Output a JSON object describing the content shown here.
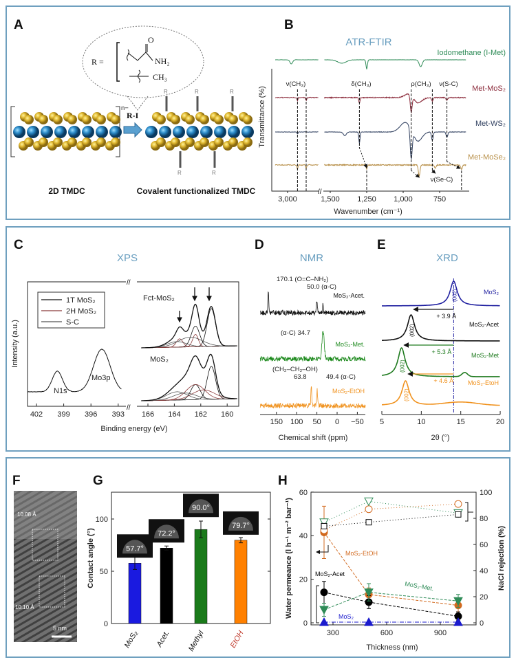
{
  "panel_a": {
    "label": "A",
    "r_equals": "R =",
    "oxygen": "O",
    "amide_group": "NH₂",
    "methyl_group": "CH₃",
    "reagent": "R-I",
    "charge": "n−",
    "r_group": "R",
    "left_caption": "2D TMDC",
    "right_caption": "Covalent functionalized TMDC"
  },
  "panel_f": {
    "label": "F",
    "spacing_top": "10.08 Å",
    "spacing_bottom": "10.10 Å",
    "scale_bar": "5 nm"
  },
  "chart_data": [
    {
      "panel": "B",
      "type": "line",
      "title": "ATR-FTIR",
      "xlabel": "Wavenumber (cm⁻¹)",
      "ylabel": "Transmittance (%)",
      "xticks": [
        3000,
        1500,
        1250,
        1000,
        750
      ],
      "xtick_labels": [
        "3,000",
        "1,500",
        "1,250",
        "1,000",
        "750"
      ],
      "axis_break": [
        2750,
        1540
      ],
      "annotations": [
        "ν(CH₃)",
        "δ(CH₃)",
        "ρ(CH₃)",
        "ν(S-C)",
        "ν(Se-C)"
      ],
      "series": [
        {
          "name": "Iodomethane (I-Met)",
          "color": "#2e8b57",
          "bands": [
            [
              2970,
              6,
              15
            ],
            [
              1420,
              5,
              40
            ],
            [
              1250,
              13,
              7
            ],
            [
              880,
              10,
              15
            ]
          ]
        },
        {
          "name": "Met-MoS₂",
          "color": "#8b2a3a",
          "bands": [
            [
              2920,
              4,
              6
            ],
            [
              2850,
              4,
              6
            ],
            [
              1300,
              8,
              6
            ],
            [
              960,
              -6,
              40
            ],
            [
              945,
              24,
              9
            ],
            [
              900,
              8,
              40
            ],
            [
              800,
              5,
              8
            ],
            [
              700,
              4,
              8
            ]
          ]
        },
        {
          "name": "Met-WS₂",
          "color": "#2f3f5f",
          "bands": [
            [
              2920,
              3,
              6
            ],
            [
              1400,
              5,
              15
            ],
            [
              1300,
              16,
              6
            ],
            [
              985,
              -14,
              50
            ],
            [
              945,
              42,
              10
            ],
            [
              900,
              14,
              40
            ],
            [
              800,
              12,
              8
            ],
            [
              700,
              8,
              8
            ]
          ]
        },
        {
          "name": "Met-MoSe₂",
          "color": "#b8904a",
          "bands": [
            [
              2920,
              6,
              6
            ],
            [
              2850,
              5,
              6
            ],
            [
              1250,
              6,
              5
            ],
            [
              890,
              16,
              8
            ],
            [
              780,
              5,
              8
            ],
            [
              600,
              6,
              8
            ]
          ]
        }
      ]
    },
    {
      "panel": "C",
      "type": "line",
      "title": "XPS",
      "xlabel": "Binding energy (eV)",
      "ylabel": "Intensity (a.u.)",
      "xtick_labels": [
        "402",
        "399",
        "396",
        "393",
        "166",
        "164",
        "162",
        "160"
      ],
      "xticks": [
        402,
        399,
        396,
        393,
        166,
        164,
        162,
        160
      ],
      "legend": [
        "1T MoS₂",
        "2H MoS₂",
        "S-C"
      ],
      "legend_placement": "top-left",
      "spectrum_labels": [
        "Fct-MoS₂",
        "MoS₂",
        "N1s",
        "Mo3p"
      ],
      "n1s_mo3p": [
        [
          399.7,
          30,
          0.8
        ],
        [
          394.8,
          62,
          1.3
        ]
      ],
      "fct_components": [
        {
          "type": "1T MoS₂",
          "peaks": [
            [
              161.2,
              55,
              0.45
            ],
            [
              162.4,
              30,
              0.45
            ]
          ]
        },
        {
          "type": "2H MoS₂",
          "peaks": [
            [
              162.4,
              18,
              0.3
            ],
            [
              163.6,
              12,
              0.35
            ]
          ]
        },
        {
          "type": "S-C",
          "peaks": [
            [
              162.8,
              14,
              1.3
            ],
            [
              163.8,
              8,
              1.0
            ]
          ]
        }
      ],
      "mos2_components": [
        {
          "type": "1T MoS₂",
          "peaks": [
            [
              161.2,
              48,
              0.45
            ],
            [
              162.4,
              22,
              0.5
            ]
          ]
        },
        {
          "type": "2H MoS₂",
          "peaks": [
            [
              162.4,
              22,
              1.0
            ],
            [
              161.8,
              14,
              1.2
            ]
          ]
        },
        {
          "type": "S-C",
          "peaks": [
            [
              163.8,
              12,
              1.1
            ],
            [
              163.2,
              10,
              1.2
            ]
          ]
        }
      ]
    },
    {
      "panel": "D",
      "type": "line",
      "title": "NMR",
      "xlabel": "Chemical shift (ppm)",
      "xticks": [
        150,
        100,
        50,
        0,
        -50
      ],
      "xtick_labels": [
        "150",
        "100",
        "50",
        "0",
        "−50"
      ],
      "annotations": [
        "170.1 (O=C–NH₂)",
        "50.0  (α-C)",
        "(α-C) 34.7",
        "(CH₂–CH₂–OH)",
        "63.8",
        "49.4 (α-C)"
      ],
      "series": [
        {
          "name": "MoS₂-Acet.",
          "color": "#111111",
          "peaks": [
            [
              170.1,
              30,
              1.5
            ],
            [
              50.0,
              16,
              2
            ],
            [
              35,
              18,
              0.8
            ]
          ]
        },
        {
          "name": "MoS₂-Met.",
          "color": "#1e8a1e",
          "peaks": [
            [
              34.7,
              40,
              4
            ]
          ]
        },
        {
          "name": "MoS₂-EtOH",
          "color": "#f0921e",
          "peaks": [
            [
              63.8,
              30,
              1.5
            ],
            [
              49.4,
              22,
              1.8
            ]
          ]
        }
      ]
    },
    {
      "panel": "E",
      "type": "line",
      "title": "XRD",
      "xlabel": "2θ (°)",
      "xticks": [
        5,
        10,
        15,
        20
      ],
      "xtick_labels": [
        "5",
        "10",
        "15",
        "20"
      ],
      "reference_2theta": 14.1,
      "peak_label": "(002)",
      "series": [
        {
          "name": "MoS₂",
          "color": "#2020a0",
          "peak": 14.1,
          "shift_label": ""
        },
        {
          "name": "MoS₂-Acet",
          "color": "#111111",
          "peak": 8.7,
          "shift_label": "+ 3.9 Å"
        },
        {
          "name": "MoS₂-Met",
          "color": "#1e7a1e",
          "peak": 7.5,
          "shift_label": "+ 5.3 Å"
        },
        {
          "name": "MoS₂-EtoH",
          "color": "#f0921e",
          "peak": 8.0,
          "shift_label": "+ 4.6 Å"
        }
      ]
    },
    {
      "panel": "G",
      "type": "bar",
      "ylabel": "Contact angle (°)",
      "ylim": [
        0,
        125
      ],
      "yticks": [
        0,
        50,
        100
      ],
      "categories": [
        "MoS₂",
        "Acet.",
        "Methyl",
        "EtOH"
      ],
      "values": [
        57.7,
        72.2,
        90.0,
        79.7
      ],
      "errors": [
        6,
        2,
        8,
        2.5
      ],
      "value_labels": [
        "57.7°",
        "72.2°",
        "90.0°",
        "79.7°"
      ],
      "colors": [
        "#1a1ae0",
        "#000000",
        "#1a7a1a",
        "#ff8000"
      ],
      "category_colors": [
        "#111111",
        "#111111",
        "#111111",
        "#c0392b"
      ]
    },
    {
      "panel": "H",
      "type": "scatter",
      "xlabel": "Thickness (nm)",
      "ylabel": "Water permeance (l h⁻¹ m⁻² bar⁻¹)",
      "y2label": "NaCl rejection (%)",
      "x": [
        250,
        500,
        1000
      ],
      "xticks": [
        300,
        600,
        900
      ],
      "yticks": [
        0,
        20,
        40,
        60
      ],
      "y2ticks": [
        0,
        20,
        40,
        60,
        80,
        100
      ],
      "ylim": [
        0,
        60
      ],
      "y2lim": [
        0,
        100
      ],
      "permeance": [
        {
          "name": "MoS₂-EtOH",
          "color": "#d2691e",
          "values": [
            41.5,
            13,
            8
          ],
          "errors": [
            12,
            3,
            3
          ]
        },
        {
          "name": "MoS₂-Acet",
          "color": "#000000",
          "values": [
            14,
            9.5,
            3
          ],
          "errors": [
            5,
            3,
            2
          ]
        },
        {
          "name": "MoS₂-Met.",
          "color": "#2e8b57",
          "values": [
            6,
            14,
            10
          ],
          "errors": [
            3,
            4,
            3
          ]
        },
        {
          "name": "MoS₂",
          "color": "#1a1acd",
          "values": [
            0.3,
            0.3,
            0.3
          ],
          "errors": [
            0,
            0,
            0
          ]
        }
      ],
      "rejection": [
        {
          "name": "MoS₂-EtOH",
          "color": "#d2691e",
          "values": [
            71,
            87,
            91
          ]
        },
        {
          "name": "MoS₂-Met.",
          "color": "#2e8b57",
          "values": [
            77,
            93,
            84
          ]
        },
        {
          "name": "MoS₂-Acet",
          "color": "#000000",
          "values": [
            74,
            77,
            83
          ]
        }
      ]
    }
  ]
}
